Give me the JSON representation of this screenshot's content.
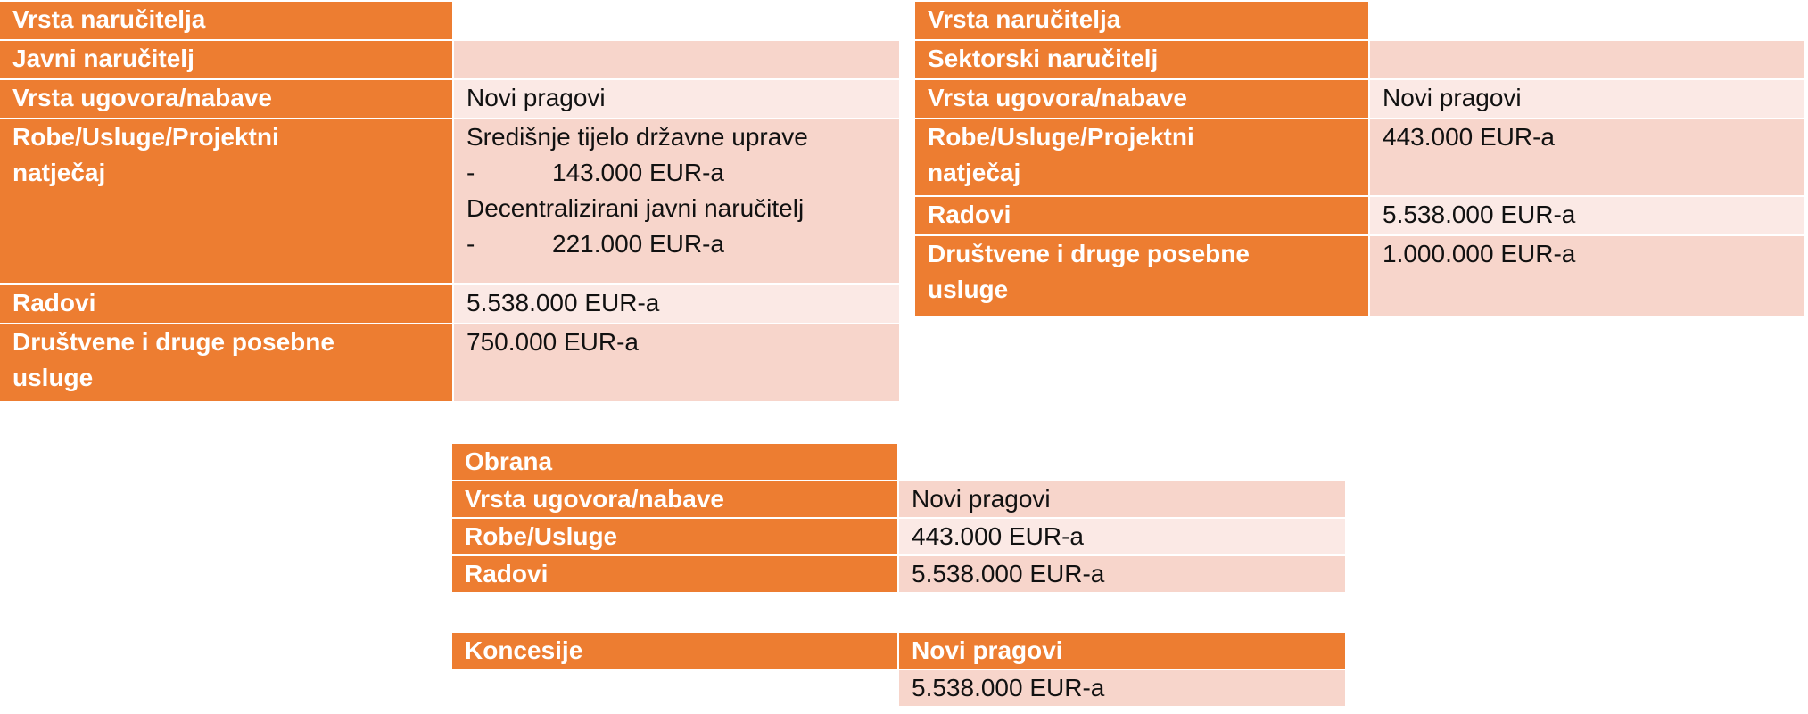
{
  "javni": {
    "header": "Vrsta naručitelja",
    "type_label": "Javni naručitelj",
    "rows": {
      "contract_label": "Vrsta ugovora/nabave",
      "contract_value": "Novi pragovi",
      "goods_label": "Robe/Usluge/Projektni natječaj",
      "goods_line1": "Središnje tijelo državne uprave",
      "goods_dash1": "-",
      "goods_value1": "143.000 EUR-a",
      "goods_line2": "Decentralizirani javni naručitelj",
      "goods_dash2": "-",
      "goods_value2": "221.000 EUR-a",
      "works_label": "Radovi",
      "works_value": "5.538.000 EUR-a",
      "social_label": "Društvene i druge posebne usluge",
      "social_value": "750.000 EUR-a"
    }
  },
  "sektorski": {
    "header": "Vrsta naručitelja",
    "type_label": "Sektorski naručitelj",
    "rows": {
      "contract_label": "Vrsta ugovora/nabave",
      "contract_value": "Novi pragovi",
      "goods_label": "Robe/Usluge/Projektni natječaj",
      "goods_value": "443.000 EUR-a",
      "works_label": "Radovi",
      "works_value": "5.538.000 EUR-a",
      "social_label": "Društvene i druge posebne usluge",
      "social_value": "1.000.000 EUR-a"
    }
  },
  "obrana": {
    "header": "Obrana",
    "contract_label": "Vrsta ugovora/nabave",
    "contract_value": "Novi pragovi",
    "goods_label": "Robe/Usluge",
    "goods_value": "443.000 EUR-a",
    "works_label": "Radovi",
    "works_value": "5.538.000 EUR-a"
  },
  "koncesije": {
    "header": "Koncesije",
    "header_value": "Novi pragovi",
    "value": "5.538.000 EUR-a"
  },
  "colors": {
    "header_orange": "#ed7d31",
    "row_peach": "#f7d5cb",
    "row_light": "#fbe9e5"
  }
}
